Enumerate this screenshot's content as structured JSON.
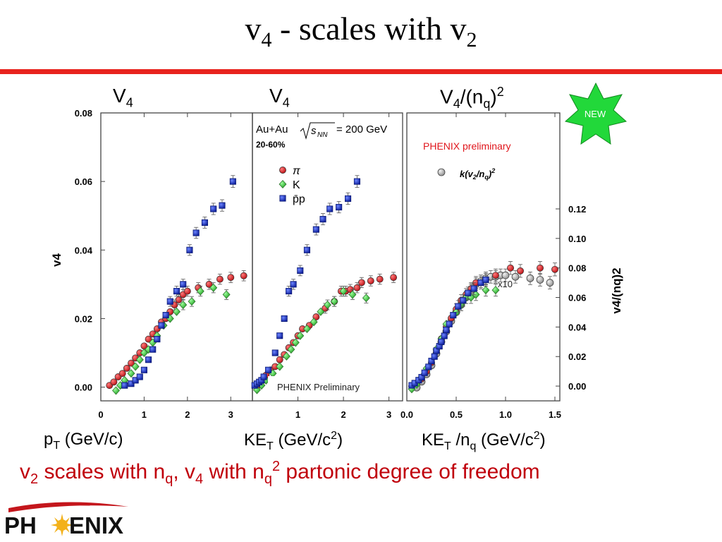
{
  "slide": {
    "title_main": "v",
    "title_sub": "4",
    "title_rest": " - scales with v",
    "title_sub2": "2"
  },
  "panel_headers": {
    "left": {
      "main": "V",
      "sub": "4"
    },
    "middle": {
      "main": "V",
      "sub": "4"
    },
    "right": {
      "main": "V",
      "sub": "4",
      "rest": "/(n",
      "sub2": "q",
      "close": ")",
      "sup": "2"
    }
  },
  "x_axis_titles": {
    "left": {
      "a": "p",
      "b": "T",
      "c": " (GeV/c)"
    },
    "middle": {
      "a": "KE",
      "b": "T",
      "c": " (GeV/c",
      "d": "2",
      "e": ")"
    },
    "right": {
      "a": "KE",
      "b": "T",
      "c": " /n",
      "d": "q",
      "e": " (GeV/c",
      "f": "2",
      "g": ")"
    }
  },
  "summary": {
    "p1": "v",
    "p1s": "2",
    "p2": " scales with n",
    "p2s": "q",
    "p3": ",   v",
    "p3s": "4",
    "p4": " with n",
    "p4s": "q",
    "p4sup": "2",
    "p5": " partonic degree of freedom"
  },
  "logo": {
    "text_left": "PH",
    "text_right": "ENIX"
  },
  "badge": {
    "label": "NEW"
  },
  "colors": {
    "accent_red": "#e8231e",
    "summary_red": "#c0000b",
    "pion": "#d9252b",
    "kaon": "#36c936",
    "proton": "#1a35c8",
    "scaled": "#c0c0c0",
    "badge_green": "#22d83a"
  },
  "chart_data": [
    {
      "type": "scatter",
      "id": "left",
      "xlabel": "pT (GeV/c)",
      "ylabel": "v4",
      "xlim": [
        0,
        3.5
      ],
      "ylim": [
        -0.004,
        0.08
      ],
      "xticks": [
        0,
        1,
        2,
        3
      ],
      "yticks": [
        0.0,
        0.02,
        0.04,
        0.06,
        0.08
      ],
      "ytick_labels": [
        "0.00",
        "0.02",
        "0.04",
        "0.06",
        "0.08"
      ],
      "series": [
        {
          "key": "pion",
          "marker": "circle",
          "points": [
            [
              0.2,
              0.0005
            ],
            [
              0.3,
              0.0015
            ],
            [
              0.4,
              0.003
            ],
            [
              0.5,
              0.004
            ],
            [
              0.6,
              0.0055
            ],
            [
              0.7,
              0.007
            ],
            [
              0.8,
              0.0085
            ],
            [
              0.9,
              0.01
            ],
            [
              1.0,
              0.012
            ],
            [
              1.1,
              0.014
            ],
            [
              1.2,
              0.0155
            ],
            [
              1.3,
              0.017
            ],
            [
              1.4,
              0.019
            ],
            [
              1.5,
              0.02
            ],
            [
              1.6,
              0.022
            ],
            [
              1.7,
              0.024
            ],
            [
              1.8,
              0.0255
            ],
            [
              1.9,
              0.027
            ],
            [
              2.0,
              0.028
            ],
            [
              2.25,
              0.029
            ],
            [
              2.5,
              0.03
            ],
            [
              2.75,
              0.0315
            ],
            [
              3.0,
              0.032
            ],
            [
              3.3,
              0.0325
            ]
          ]
        },
        {
          "key": "kaon",
          "marker": "diamond",
          "points": [
            [
              0.35,
              -0.001
            ],
            [
              0.45,
              0.0005
            ],
            [
              0.55,
              0.002
            ],
            [
              0.7,
              0.004
            ],
            [
              0.8,
              0.006
            ],
            [
              0.9,
              0.008
            ],
            [
              1.0,
              0.01
            ],
            [
              1.1,
              0.011
            ],
            [
              1.2,
              0.013
            ],
            [
              1.3,
              0.015
            ],
            [
              1.45,
              0.018
            ],
            [
              1.6,
              0.02
            ],
            [
              1.75,
              0.022
            ],
            [
              1.9,
              0.024
            ],
            [
              2.1,
              0.025
            ],
            [
              2.3,
              0.028
            ],
            [
              2.6,
              0.029
            ],
            [
              2.9,
              0.027
            ]
          ]
        },
        {
          "key": "proton",
          "marker": "square",
          "points": [
            [
              0.55,
              0.0005
            ],
            [
              0.7,
              0.001
            ],
            [
              0.8,
              0.002
            ],
            [
              0.9,
              0.003
            ],
            [
              1.0,
              0.005
            ],
            [
              1.1,
              0.008
            ],
            [
              1.2,
              0.011
            ],
            [
              1.3,
              0.014
            ],
            [
              1.4,
              0.018
            ],
            [
              1.5,
              0.021
            ],
            [
              1.6,
              0.025
            ],
            [
              1.75,
              0.028
            ],
            [
              1.9,
              0.03
            ],
            [
              2.05,
              0.04
            ],
            [
              2.2,
              0.045
            ],
            [
              2.4,
              0.048
            ],
            [
              2.6,
              0.052
            ],
            [
              2.8,
              0.053
            ],
            [
              3.05,
              0.06
            ]
          ]
        }
      ]
    },
    {
      "type": "scatter",
      "id": "middle",
      "xlabel": "KET (GeV/c2)",
      "xlim": [
        0,
        3.3
      ],
      "ylim": [
        -0.004,
        0.08
      ],
      "xticks": [
        1,
        2,
        3
      ],
      "legend_header": {
        "line1": "Au+Au",
        "sqrt_label": "s",
        "sqrt_sub": "NN",
        "equals": "= 200 GeV",
        "centrality": "20-60%"
      },
      "legend": [
        {
          "key": "pion",
          "marker": "circle",
          "label": "π"
        },
        {
          "key": "kaon",
          "marker": "diamond",
          "label": "K"
        },
        {
          "key": "proton",
          "marker": "square",
          "label": "p̄p"
        }
      ],
      "annotation": "PHENIX Preliminary",
      "series": [
        {
          "key": "pion",
          "marker": "circle",
          "points": [
            [
              0.1,
              0.0002
            ],
            [
              0.15,
              0.0012
            ],
            [
              0.2,
              0.002
            ],
            [
              0.3,
              0.0035
            ],
            [
              0.4,
              0.005
            ],
            [
              0.5,
              0.006
            ],
            [
              0.6,
              0.008
            ],
            [
              0.7,
              0.0095
            ],
            [
              0.8,
              0.0115
            ],
            [
              0.9,
              0.013
            ],
            [
              1.0,
              0.015
            ],
            [
              1.1,
              0.017
            ],
            [
              1.25,
              0.018
            ],
            [
              1.4,
              0.0205
            ],
            [
              1.6,
              0.023
            ],
            [
              1.8,
              0.025
            ],
            [
              1.95,
              0.028
            ],
            [
              2.05,
              0.028
            ],
            [
              2.15,
              0.0285
            ],
            [
              2.3,
              0.029
            ],
            [
              2.4,
              0.0305
            ],
            [
              2.6,
              0.031
            ],
            [
              2.8,
              0.0315
            ],
            [
              3.1,
              0.032
            ]
          ]
        },
        {
          "key": "kaon",
          "marker": "diamond",
          "points": [
            [
              0.1,
              -0.0008
            ],
            [
              0.2,
              0.0005
            ],
            [
              0.3,
              0.002
            ],
            [
              0.45,
              0.004
            ],
            [
              0.6,
              0.006
            ],
            [
              0.75,
              0.009
            ],
            [
              0.85,
              0.011
            ],
            [
              0.95,
              0.013
            ],
            [
              1.05,
              0.015
            ],
            [
              1.2,
              0.017
            ],
            [
              1.35,
              0.019
            ],
            [
              1.5,
              0.022
            ],
            [
              1.65,
              0.024
            ],
            [
              1.8,
              0.025
            ],
            [
              2.0,
              0.028
            ],
            [
              2.2,
              0.027
            ],
            [
              2.5,
              0.026
            ]
          ]
        },
        {
          "key": "proton",
          "marker": "square",
          "points": [
            [
              0.05,
              0.0005
            ],
            [
              0.1,
              0.001
            ],
            [
              0.15,
              0.0015
            ],
            [
              0.2,
              0.002
            ],
            [
              0.25,
              0.003
            ],
            [
              0.35,
              0.005
            ],
            [
              0.5,
              0.01
            ],
            [
              0.6,
              0.015
            ],
            [
              0.7,
              0.02
            ],
            [
              0.8,
              0.028
            ],
            [
              0.9,
              0.03
            ],
            [
              1.05,
              0.034
            ],
            [
              1.2,
              0.04
            ],
            [
              1.4,
              0.046
            ],
            [
              1.55,
              0.049
            ],
            [
              1.7,
              0.052
            ],
            [
              1.9,
              0.0525
            ],
            [
              2.1,
              0.055
            ],
            [
              2.3,
              0.06
            ]
          ]
        }
      ]
    },
    {
      "type": "scatter",
      "id": "right",
      "xlabel": "KET /nq (GeV/c2)",
      "ylabel": "v4/(nq)2",
      "xlim": [
        0,
        1.55
      ],
      "ylim": [
        -0.01,
        0.185
      ],
      "xticks": [
        0.0,
        0.5,
        1.0,
        1.5
      ],
      "xtick_labels": [
        "0.0",
        "0.5",
        "1.0",
        "1.5"
      ],
      "yticks": [
        0.0,
        0.02,
        0.04,
        0.06,
        0.08,
        0.1,
        0.12
      ],
      "ytick_labels": [
        "0.00",
        "0.02",
        "0.04",
        "0.06",
        "0.08",
        "0.10",
        "0.12"
      ],
      "annotation_top": "PHENIX preliminary",
      "legend": [
        {
          "key": "scaled",
          "marker": "circle",
          "label_main": "k(v",
          "label_sub": "2",
          "label_mid": "/n",
          "label_sub2": "q",
          "label_end": ")",
          "label_sup": "2"
        }
      ],
      "scale_note": "x10",
      "series": [
        {
          "key": "scaled",
          "marker": "circle",
          "points": [
            [
              0.1,
              -0.001
            ],
            [
              0.15,
              0.003
            ],
            [
              0.2,
              0.008
            ],
            [
              0.25,
              0.014
            ],
            [
              0.3,
              0.022
            ],
            [
              0.35,
              0.03
            ],
            [
              0.4,
              0.037
            ],
            [
              0.45,
              0.044
            ],
            [
              0.5,
              0.05
            ],
            [
              0.55,
              0.055
            ],
            [
              0.6,
              0.06
            ],
            [
              0.65,
              0.065
            ],
            [
              0.7,
              0.069
            ],
            [
              0.75,
              0.071
            ],
            [
              0.8,
              0.073
            ],
            [
              0.85,
              0.074
            ],
            [
              0.9,
              0.074
            ],
            [
              0.95,
              0.075
            ],
            [
              1.0,
              0.075
            ],
            [
              1.1,
              0.074
            ],
            [
              1.25,
              0.073
            ],
            [
              1.35,
              0.072
            ],
            [
              1.45,
              0.07
            ]
          ]
        },
        {
          "key": "pion",
          "marker": "circle",
          "points": [
            [
              0.05,
              0.0
            ],
            [
              0.1,
              0.002
            ],
            [
              0.15,
              0.005
            ],
            [
              0.2,
              0.01
            ],
            [
              0.25,
              0.016
            ],
            [
              0.3,
              0.024
            ],
            [
              0.35,
              0.032
            ],
            [
              0.4,
              0.04
            ],
            [
              0.45,
              0.046
            ],
            [
              0.5,
              0.052
            ],
            [
              0.55,
              0.058
            ],
            [
              0.6,
              0.062
            ],
            [
              0.65,
              0.066
            ],
            [
              0.7,
              0.07
            ],
            [
              0.8,
              0.072
            ],
            [
              0.9,
              0.075
            ],
            [
              1.05,
              0.08
            ],
            [
              1.15,
              0.078
            ],
            [
              1.35,
              0.08
            ],
            [
              1.5,
              0.079
            ]
          ]
        },
        {
          "key": "kaon",
          "marker": "diamond",
          "points": [
            [
              0.05,
              -0.002
            ],
            [
              0.1,
              0.001
            ],
            [
              0.15,
              0.006
            ],
            [
              0.2,
              0.012
            ],
            [
              0.3,
              0.025
            ],
            [
              0.35,
              0.032
            ],
            [
              0.4,
              0.042
            ],
            [
              0.5,
              0.05
            ],
            [
              0.55,
              0.055
            ],
            [
              0.6,
              0.06
            ],
            [
              0.65,
              0.06
            ],
            [
              0.7,
              0.062
            ],
            [
              0.8,
              0.065
            ],
            [
              0.9,
              0.065
            ]
          ]
        },
        {
          "key": "proton",
          "marker": "square",
          "points": [
            [
              0.05,
              0.0005
            ],
            [
              0.08,
              0.002
            ],
            [
              0.12,
              0.004
            ],
            [
              0.15,
              0.006
            ],
            [
              0.18,
              0.009
            ],
            [
              0.22,
              0.013
            ],
            [
              0.25,
              0.017
            ],
            [
              0.28,
              0.02
            ],
            [
              0.3,
              0.024
            ],
            [
              0.33,
              0.027
            ],
            [
              0.35,
              0.03
            ],
            [
              0.38,
              0.034
            ],
            [
              0.4,
              0.038
            ],
            [
              0.43,
              0.042
            ],
            [
              0.47,
              0.048
            ],
            [
              0.52,
              0.054
            ],
            [
              0.57,
              0.058
            ],
            [
              0.62,
              0.063
            ],
            [
              0.68,
              0.066
            ],
            [
              0.75,
              0.07
            ],
            [
              0.8,
              0.072
            ]
          ]
        }
      ]
    }
  ]
}
